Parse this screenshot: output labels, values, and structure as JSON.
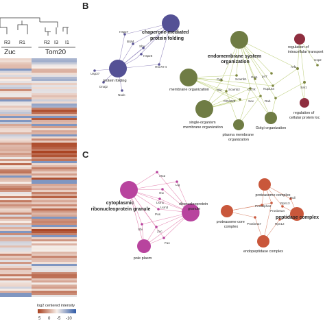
{
  "panels": {
    "b_letter": "B",
    "c_letter": "C"
  },
  "heatmap": {
    "sample_labels": [
      "R3",
      "R1",
      "R2",
      "I3",
      "I1"
    ],
    "group_labels": [
      "Zuc",
      "Tom20"
    ],
    "legend_title": "log2 centered intensity",
    "legend_ticks": [
      "5",
      "0",
      "-5",
      "-10"
    ],
    "colors": {
      "high": "#a8401e",
      "mid": "#f7efe9",
      "low": "#2f5aa6"
    }
  },
  "network_b": {
    "hubs": {
      "chaperone": "chaperone-mediated\nprotein folding",
      "endomembrane": "endomembrane system\norganization",
      "protein_folding": "protein folding",
      "membrane_org": "membrane organization",
      "single_organism": "single-organism\nmembrane organization",
      "golgi": "Golgi organization",
      "plasma_membrane": "plasma membrane\norganization",
      "reg_intracellular": "regulation of\nintracellular transport",
      "reg_cellular": "regulation of\ncellular protein loc"
    },
    "genes": [
      "Hsp27",
      "BUM",
      "Shu",
      "Hsp26",
      "Hsc70-4",
      "Usp37",
      "Dnaj2",
      "Nudc",
      "Cys",
      "Scamb1",
      "Gie1",
      "p47",
      "Ote",
      "Scamb2",
      "CLTR",
      "Nup154",
      "GGa025",
      "Sex",
      "Rab",
      "Arf1",
      "Usp2",
      "Sar1"
    ],
    "colors": {
      "chaperone": "#545195",
      "endomembrane": "#6f7c44",
      "reg": "#8f2e3f",
      "edge_purple": "#9a8fc2",
      "edge_green": "#bfd07f"
    }
  },
  "network_c": {
    "hubs": {
      "cytoplasmic": "cytoplasmic\nribonucleoprotein granule",
      "rnp_granule": "ribonucleoprotein\ngranule",
      "pole_plasm": "pole plasm",
      "proteasome_complex": "proteasome complex",
      "proteasome_core": "proteasome core\ncomplex",
      "peptidase": "peptidase complex",
      "endopeptidase": "endopeptidase complex"
    },
    "genes": [
      "Atx2",
      "Lig",
      "Gw",
      "Lsm1",
      "Lsm3",
      "Pos",
      "Sbi",
      "Zuc",
      "Fas",
      "Prosalpha3",
      "Prosbeta4",
      "Rpn13",
      "Rpn12",
      "Prosbeta7",
      "Pull"
    ],
    "colors": {
      "granule": "#b8449e",
      "proteasome": "#c9573b",
      "edge_pink": "#e58fb7"
    }
  }
}
